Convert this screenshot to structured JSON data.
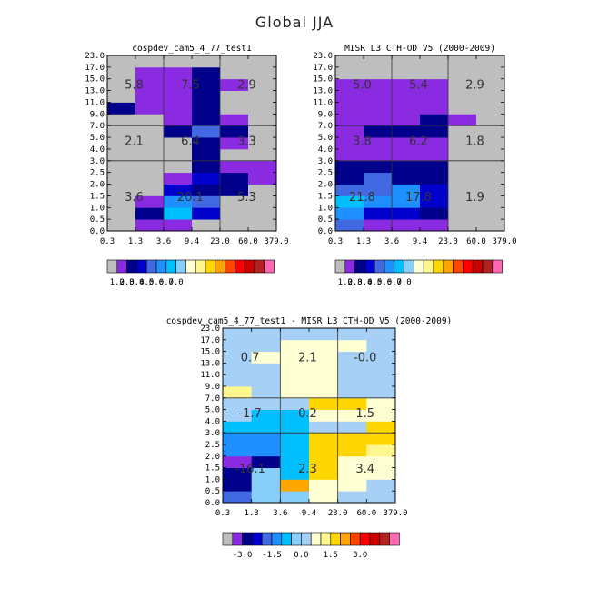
{
  "title": "Global JJA",
  "colors": {
    "gray": "#BEBEBE",
    "sequential": [
      "#BEBEBE",
      "#8A2BE2",
      "#00008B",
      "#0000CD",
      "#4169E1",
      "#1E90FF",
      "#00BFFF",
      "#87CEFA",
      "#FFFFD4",
      "#FFF68F",
      "#FFD700",
      "#FFA500",
      "#FF4500",
      "#FF0000",
      "#CD0000",
      "#B22222",
      "#FF69B4"
    ],
    "diverging": [
      "#BEBEBE",
      "#8A2BE2",
      "#00008B",
      "#0000CD",
      "#4169E1",
      "#1E90FF",
      "#00BFFF",
      "#87CEFA",
      "#A6D0F5",
      "#FFFFD4",
      "#FFF68F",
      "#FFD700",
      "#FFA500",
      "#FF4500",
      "#FF0000",
      "#CD0000",
      "#B22222",
      "#FF69B4"
    ]
  },
  "chart_data": [
    {
      "type": "heatmap",
      "title": "cospdev_cam5_4_77_test1",
      "xlabel": "",
      "ylabel": "",
      "x_tick_labels": [
        "0.3",
        "1.3",
        "3.6",
        "9.4",
        "23.0",
        "60.0",
        "379.0"
      ],
      "y_tick_labels": [
        "0.0",
        "0.5",
        "1.0",
        "1.5",
        "2.0",
        "2.5",
        "3.0",
        "4.0",
        "5.0",
        "7.0",
        "9.0",
        "11.0",
        "13.0",
        "15.0",
        "17.0",
        "23.0"
      ],
      "cells": [
        [
          0,
          1,
          1,
          0,
          0,
          0
        ],
        [
          0,
          2,
          6,
          3,
          0,
          0
        ],
        [
          0,
          1,
          5,
          4,
          0,
          0
        ],
        [
          0,
          0,
          3,
          2,
          2,
          0
        ],
        [
          0,
          0,
          1,
          3,
          2,
          1
        ],
        [
          0,
          0,
          0,
          2,
          1,
          1
        ],
        [
          0,
          0,
          0,
          2,
          0,
          0
        ],
        [
          0,
          0,
          0,
          2,
          1,
          0
        ],
        [
          0,
          0,
          2,
          4,
          2,
          0
        ],
        [
          0,
          0,
          1,
          2,
          1,
          0
        ],
        [
          2,
          1,
          1,
          2,
          0,
          0
        ],
        [
          0,
          1,
          1,
          2,
          0,
          0
        ],
        [
          0,
          1,
          1,
          2,
          1,
          0
        ],
        [
          0,
          1,
          1,
          2,
          0,
          0
        ],
        [
          0,
          0,
          0,
          0,
          0,
          0
        ]
      ],
      "region_labels": [
        {
          "text": "5.8",
          "x": 0.95,
          "y": 12.55
        },
        {
          "text": "7.5",
          "x": 2.95,
          "y": 12.55
        },
        {
          "text": "2.9",
          "x": 4.95,
          "y": 12.55
        },
        {
          "text": "2.1",
          "x": 0.95,
          "y": 7.75
        },
        {
          "text": "6.4",
          "x": 2.95,
          "y": 7.75
        },
        {
          "text": "3.3",
          "x": 4.95,
          "y": 7.75
        },
        {
          "text": "3.6",
          "x": 0.95,
          "y": 2.95
        },
        {
          "text": "20.1",
          "x": 2.95,
          "y": 2.95
        },
        {
          "text": "5.3",
          "x": 4.95,
          "y": 2.95
        }
      ],
      "colorbar_labels": [
        "1.0",
        "2.0",
        "3.0",
        "4.0",
        "5.0",
        "6.0",
        "7.0"
      ]
    },
    {
      "type": "heatmap",
      "title": "MISR L3 CTH-OD V5 (2000-2009)",
      "xlabel": "",
      "ylabel": "",
      "x_tick_labels": [
        "0.3",
        "1.3",
        "3.6",
        "9.4",
        "23.0",
        "60.0",
        "379.0"
      ],
      "y_tick_labels": [
        "0.0",
        "0.5",
        "1.0",
        "1.5",
        "2.0",
        "2.5",
        "3.0",
        "4.0",
        "5.0",
        "7.0",
        "9.0",
        "11.0",
        "13.0",
        "15.0",
        "17.0",
        "23.0"
      ],
      "cells": [
        [
          4,
          1,
          1,
          1,
          0,
          0
        ],
        [
          5,
          3,
          3,
          2,
          0,
          0
        ],
        [
          6,
          5,
          5,
          3,
          0,
          0
        ],
        [
          4,
          4,
          5,
          3,
          0,
          0
        ],
        [
          2,
          4,
          2,
          2,
          0,
          0
        ],
        [
          2,
          2,
          2,
          2,
          0,
          0
        ],
        [
          1,
          1,
          1,
          1,
          0,
          0
        ],
        [
          1,
          1,
          1,
          1,
          0,
          0
        ],
        [
          1,
          2,
          2,
          2,
          0,
          0
        ],
        [
          1,
          1,
          1,
          2,
          1,
          0
        ],
        [
          1,
          1,
          1,
          1,
          0,
          0
        ],
        [
          1,
          1,
          1,
          1,
          0,
          0
        ],
        [
          1,
          1,
          1,
          1,
          0,
          0
        ],
        [
          0,
          0,
          0,
          0,
          0,
          0
        ],
        [
          0,
          0,
          0,
          0,
          0,
          0
        ]
      ],
      "region_labels": [
        {
          "text": "5.0",
          "x": 0.95,
          "y": 12.55
        },
        {
          "text": "5.4",
          "x": 2.95,
          "y": 12.55
        },
        {
          "text": "2.9",
          "x": 4.95,
          "y": 12.55
        },
        {
          "text": "3.8",
          "x": 0.95,
          "y": 7.75
        },
        {
          "text": "6.2",
          "x": 2.95,
          "y": 7.75
        },
        {
          "text": "1.8",
          "x": 4.95,
          "y": 7.75
        },
        {
          "text": "21.8",
          "x": 0.95,
          "y": 2.95
        },
        {
          "text": "17.8",
          "x": 2.95,
          "y": 2.95
        },
        {
          "text": "1.9",
          "x": 4.95,
          "y": 2.95
        }
      ],
      "colorbar_labels": [
        "1.0",
        "2.0",
        "3.0",
        "4.0",
        "5.0",
        "6.0",
        "7.0"
      ]
    },
    {
      "type": "heatmap",
      "title": "cospdev_cam5_4_77_test1 - MISR L3 CTH-OD V5 (2000-2009)",
      "xlabel": "",
      "ylabel": "",
      "x_tick_labels": [
        "0.3",
        "1.3",
        "3.6",
        "9.4",
        "23.0",
        "60.0",
        "379.0"
      ],
      "y_tick_labels": [
        "0.0",
        "0.5",
        "1.0",
        "1.5",
        "2.0",
        "2.5",
        "3.0",
        "4.0",
        "5.0",
        "7.0",
        "9.0",
        "11.0",
        "13.0",
        "15.0",
        "17.0",
        "23.0"
      ],
      "cells": [
        [
          4,
          7,
          7,
          9,
          8,
          8
        ],
        [
          2,
          7,
          12,
          9,
          9,
          8
        ],
        [
          2,
          7,
          6,
          11,
          9,
          9
        ],
        [
          1,
          2,
          6,
          11,
          9,
          9
        ],
        [
          5,
          5,
          6,
          11,
          11,
          10
        ],
        [
          5,
          5,
          6,
          11,
          11,
          11
        ],
        [
          6,
          6,
          6,
          8,
          8,
          11
        ],
        [
          8,
          6,
          6,
          9,
          9,
          9
        ],
        [
          8,
          8,
          8,
          11,
          11,
          9
        ],
        [
          10,
          8,
          9,
          9,
          8,
          8
        ],
        [
          8,
          8,
          9,
          9,
          8,
          8
        ],
        [
          8,
          8,
          9,
          9,
          8,
          8
        ],
        [
          8,
          9,
          9,
          9,
          8,
          8
        ],
        [
          8,
          8,
          9,
          9,
          9,
          8
        ],
        [
          8,
          8,
          8,
          8,
          8,
          8
        ]
      ],
      "region_labels": [
        {
          "text": "0.7",
          "x": 0.95,
          "y": 12.55
        },
        {
          "text": "2.1",
          "x": 2.95,
          "y": 12.55
        },
        {
          "text": "-0.0",
          "x": 4.95,
          "y": 12.55
        },
        {
          "text": "-1.7",
          "x": 0.95,
          "y": 7.75
        },
        {
          "text": "0.2",
          "x": 2.95,
          "y": 7.75
        },
        {
          "text": "1.5",
          "x": 4.95,
          "y": 7.75
        },
        {
          "text": "-16.1",
          "x": 0.95,
          "y": 2.95
        },
        {
          "text": "2.3",
          "x": 2.95,
          "y": 2.95
        },
        {
          "text": "3.4",
          "x": 4.95,
          "y": 2.95
        }
      ],
      "colorbar_labels": [
        "-3.0",
        "-1.5",
        "0.0",
        "1.5",
        "3.0"
      ]
    }
  ]
}
